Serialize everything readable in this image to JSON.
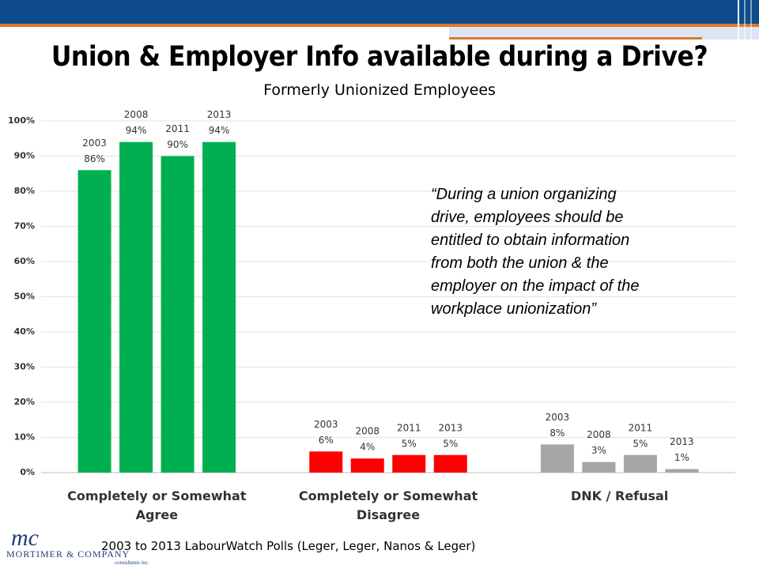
{
  "chart_data": {
    "type": "bar",
    "title": "Union & Employer Info available during a Drive?",
    "subtitle": "Formerly Unionized Employees",
    "categories": [
      "Completely or Somewhat Agree",
      "Completely or Somewhat Disagree",
      "DNK / Refusal"
    ],
    "colors": [
      "#00b050",
      "#ff0000",
      "#a6a6a6"
    ],
    "series": [
      {
        "name": "2003",
        "values": [
          86,
          6,
          8
        ],
        "value_labels": [
          "86%",
          "6%",
          "8%"
        ]
      },
      {
        "name": "2008",
        "values": [
          94,
          4,
          3
        ],
        "value_labels": [
          "94%",
          "4%",
          "3%"
        ]
      },
      {
        "name": "2011",
        "values": [
          90,
          5,
          5
        ],
        "value_labels": [
          "90%",
          "5%",
          "5%"
        ]
      },
      {
        "name": "2013",
        "values": [
          94,
          5,
          1
        ],
        "value_labels": [
          "94%",
          "5%",
          "1%"
        ]
      }
    ],
    "ylim": [
      0,
      100
    ],
    "yticks": [
      {
        "value": 0,
        "label": "0%"
      },
      {
        "value": 10,
        "label": "10%"
      },
      {
        "value": 20,
        "label": "20%"
      },
      {
        "value": 30,
        "label": "30%"
      },
      {
        "value": 40,
        "label": "40%"
      },
      {
        "value": 50,
        "label": "50%"
      },
      {
        "value": 60,
        "label": "60%"
      },
      {
        "value": 70,
        "label": "70%"
      },
      {
        "value": 80,
        "label": "80%"
      },
      {
        "value": 90,
        "label": "90%"
      },
      {
        "value": 100,
        "label": "100%"
      }
    ],
    "grid": true,
    "annotation": [
      "“During a union organizing",
      "drive, employees should be",
      "entitled to obtain information",
      "from both the union & the",
      "employer on the impact of the",
      "workplace unionization”"
    ],
    "source": "2003 to 2013 LabourWatch Polls (Leger, Leger, Nanos & Leger)"
  },
  "logo": {
    "mark": "mc",
    "name": "MORTIMER & COMPANY",
    "tagline": "consultants inc."
  }
}
